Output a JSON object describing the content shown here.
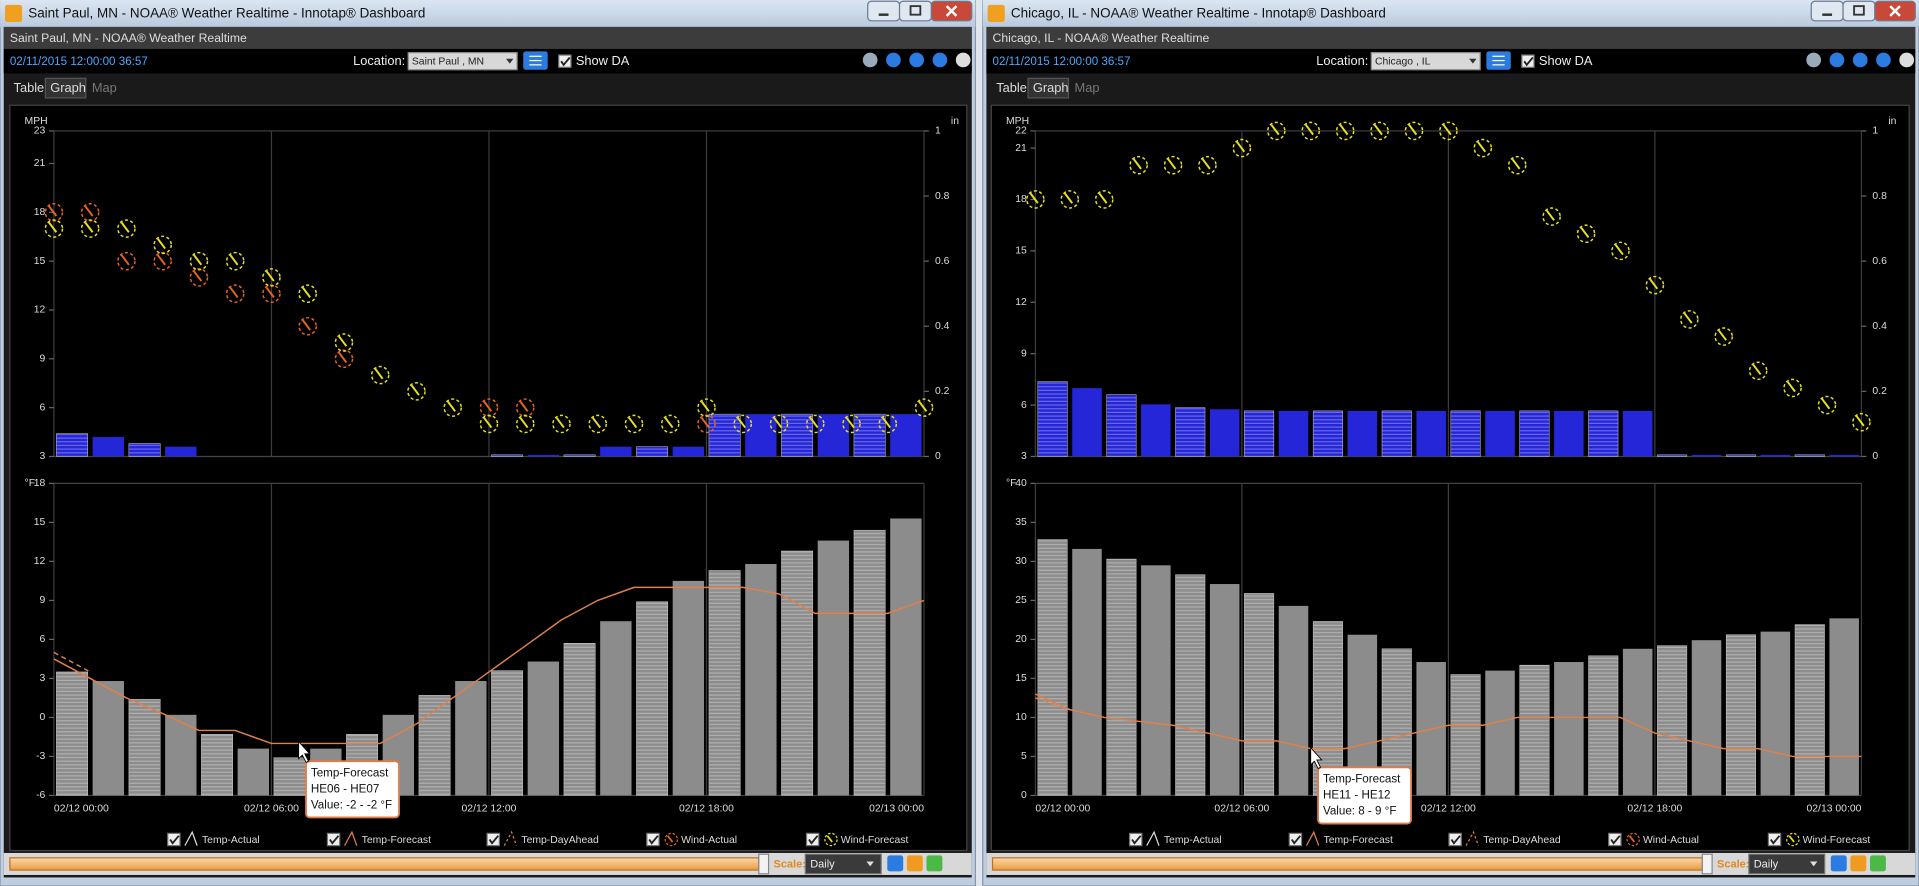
{
  "windows": [
    {
      "title": "Saint Paul, MN - NOAA® Weather Realtime - Innotap® Dashboard",
      "subtitle": "Saint Paul, MN - NOAA® Weather Realtime",
      "timestamp": "02/11/2015 12:00:00 36:57",
      "location_label": "Location:",
      "location": "Saint Paul , MN",
      "show_da": "Show DA",
      "tabs": [
        "Table",
        "Graph",
        "Map"
      ],
      "scale_label": "Scale:",
      "scale": "Daily",
      "tooltip": [
        "Temp-Forecast",
        "HE06 - HE07",
        "Value: -2 - -2 °F"
      ],
      "chart_data": [
        {
          "type": "combo",
          "y_label": "MPH",
          "y2_label": "in",
          "ylim": [
            3,
            23
          ],
          "yticks": [
            3,
            6,
            9,
            12,
            15,
            18,
            21,
            23
          ],
          "y2lim": [
            0,
            1
          ],
          "y2ticks": [
            0,
            0.2,
            0.4,
            0.6,
            0.8,
            1
          ],
          "xlabels": [
            "02/12 00:00",
            "02/12 06:00",
            "02/12 12:00",
            "02/12 18:00",
            "02/13 00:00"
          ],
          "bars": {
            "axis": "y2",
            "color": "#2626d9",
            "values": [
              0.07,
              0.06,
              0.04,
              0.03,
              0,
              0,
              0,
              0,
              0,
              0,
              0,
              0,
              0.005,
              0.005,
              0.005,
              0.03,
              0.03,
              0.03,
              0.13,
              0.13,
              0.13,
              0.13,
              0.13,
              0.13
            ]
          },
          "series": [
            {
              "name": "Wind-Actual",
              "kind": "marker",
              "color": "#e8641e",
              "values": [
                18,
                18,
                15,
                15,
                14,
                13,
                13,
                11,
                9,
                null,
                null,
                null,
                6,
                6,
                null,
                null,
                null,
                null,
                5,
                null,
                null,
                null,
                null,
                null,
                null
              ]
            },
            {
              "name": "Wind-Forecast",
              "kind": "marker",
              "color": "#e8e01e",
              "values": [
                17,
                17,
                17,
                16,
                15,
                15,
                14,
                13,
                10,
                8,
                7,
                6,
                5,
                5,
                5,
                5,
                5,
                5,
                6,
                5,
                5,
                5,
                5,
                5,
                6
              ]
            }
          ]
        },
        {
          "type": "combo",
          "y_label": "°F",
          "ylim": [
            -6,
            18
          ],
          "yticks": [
            -6,
            -3,
            0,
            3,
            6,
            9,
            12,
            15,
            18
          ],
          "xlabels": [
            "02/12 00:00",
            "02/12 06:00",
            "02/12 12:00",
            "02/12 18:00",
            "02/13 00:00"
          ],
          "series": [
            {
              "name": "Temp-Actual",
              "kind": "bar",
              "color": "#8c8c8c",
              "values": [
                3.5,
                2.8,
                1.4,
                0.2,
                -1.3,
                -2.4,
                -3.1,
                -2.4,
                -1.3,
                0.2,
                1.7,
                2.8,
                3.6,
                4.3,
                5.7,
                7.4,
                8.9,
                10.5,
                11.3,
                11.8,
                12.8,
                13.6,
                14.4,
                15.3
              ]
            },
            {
              "name": "Temp-Forecast",
              "kind": "line",
              "color": "#e0804a",
              "values": [
                4.5,
                3,
                1.5,
                0.3,
                -1,
                -1,
                -2,
                -2,
                -2,
                -2,
                -0.5,
                1.5,
                3.5,
                5.5,
                7.5,
                9,
                10,
                10,
                10,
                10,
                9.5,
                8,
                8,
                8,
                9
              ]
            },
            {
              "name": "Temp-DayAhead",
              "kind": "line",
              "dashed": true,
              "color": "#e0804a",
              "values": [
                5,
                3.5,
                null,
                null,
                null,
                null,
                null,
                null,
                null,
                null,
                null,
                null,
                null,
                null,
                null,
                null,
                null,
                null,
                null,
                null,
                null,
                null,
                null,
                null,
                null
              ]
            }
          ]
        }
      ]
    },
    {
      "title": "Chicago, IL - NOAA® Weather Realtime - Innotap® Dashboard",
      "subtitle": "Chicago, IL - NOAA® Weather Realtime",
      "timestamp": "02/11/2015 12:00:00 36:57",
      "location_label": "Location:",
      "location": "Chicago , IL",
      "show_da": "Show DA",
      "tabs": [
        "Table",
        "Graph",
        "Map"
      ],
      "scale_label": "Scale:",
      "scale": "Daily",
      "tooltip": [
        "Temp-Forecast",
        "HE11 - HE12",
        "Value: 8 - 9 °F"
      ],
      "chart_data": [
        {
          "type": "combo",
          "y_label": "MPH",
          "y2_label": "in",
          "ylim": [
            3,
            22
          ],
          "yticks": [
            3,
            6,
            9,
            12,
            15,
            18,
            21,
            22
          ],
          "y2lim": [
            0,
            1
          ],
          "y2ticks": [
            0,
            0.2,
            0.4,
            0.6,
            0.8,
            1
          ],
          "xlabels": [
            "02/12 00:00",
            "02/12 06:00",
            "02/12 12:00",
            "02/12 18:00",
            "02/13 00:00"
          ],
          "bars": {
            "axis": "y2",
            "color": "#2626d9",
            "values": [
              0.23,
              0.21,
              0.19,
              0.16,
              0.15,
              0.145,
              0.14,
              0.14,
              0.14,
              0.14,
              0.14,
              0.14,
              0.14,
              0.14,
              0.14,
              0.14,
              0.14,
              0.14,
              0.005,
              0.005,
              0.005,
              0.005,
              0.005,
              0.005
            ]
          },
          "series": [
            {
              "name": "Wind-Actual",
              "kind": "marker",
              "color": "#e8641e",
              "values": [
                null,
                null,
                null,
                null,
                null,
                null,
                null,
                null,
                null,
                null,
                null,
                null,
                null,
                null,
                null,
                null,
                null,
                null,
                null,
                null,
                null,
                null,
                null,
                null,
                null
              ]
            },
            {
              "name": "Wind-Forecast",
              "kind": "marker",
              "color": "#e8e01e",
              "values": [
                18,
                18,
                18,
                20,
                20,
                20,
                21,
                22,
                22,
                22,
                22,
                22,
                22,
                21,
                20,
                17,
                16,
                15,
                13,
                11,
                10,
                8,
                7,
                6,
                5
              ]
            }
          ]
        },
        {
          "type": "combo",
          "y_label": "°F",
          "ylim": [
            0,
            40
          ],
          "yticks": [
            0,
            5,
            10,
            15,
            20,
            25,
            30,
            35,
            40
          ],
          "xlabels": [
            "02/12 00:00",
            "02/12 06:00",
            "02/12 12:00",
            "02/12 18:00",
            "02/13 00:00"
          ],
          "series": [
            {
              "name": "Temp-Actual",
              "kind": "bar",
              "color": "#8c8c8c",
              "values": [
                32.8,
                31.6,
                30.3,
                29.5,
                28.3,
                27.1,
                25.9,
                24.3,
                22.3,
                20.6,
                18.8,
                17.1,
                15.5,
                16,
                16.7,
                17.1,
                17.9,
                18.8,
                19.2,
                19.9,
                20.6,
                21,
                21.9,
                22.7
              ]
            },
            {
              "name": "Temp-Forecast",
              "kind": "line",
              "color": "#e0804a",
              "values": [
                13,
                11,
                10,
                9.5,
                9,
                8,
                7,
                7,
                6,
                6,
                7,
                8,
                9,
                9,
                10,
                10,
                10,
                10,
                8,
                7,
                6,
                6,
                5,
                5,
                5
              ]
            },
            {
              "name": "Temp-DayAhead",
              "kind": "line",
              "dashed": true,
              "color": "#e0804a",
              "values": [
                12.5,
                11,
                null,
                null,
                null,
                null,
                null,
                null,
                null,
                null,
                null,
                null,
                null,
                null,
                null,
                null,
                null,
                null,
                null,
                null,
                null,
                null,
                null,
                null,
                null
              ]
            }
          ]
        }
      ]
    }
  ]
}
